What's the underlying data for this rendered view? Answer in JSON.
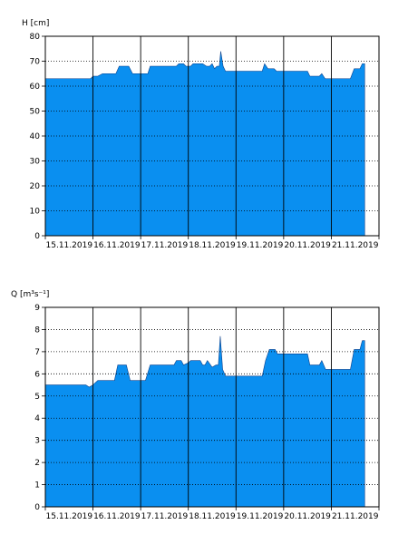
{
  "chart_data": [
    {
      "type": "area",
      "ylabel": "H [cm]",
      "ylim": [
        0,
        80
      ],
      "yticks": [
        0,
        10,
        20,
        30,
        40,
        50,
        60,
        70,
        80
      ],
      "xlim": [
        0,
        7
      ],
      "xticks": [
        "15.11.2019",
        "16.11.2019",
        "17.11.2019",
        "18.11.2019",
        "19.11.2019",
        "20.11.2019",
        "21.11.2019"
      ],
      "grid": "horizontal-dotted, vertical-solid-at-day-boundaries",
      "fill_color": "#0a8ff0",
      "points": [
        [
          0.0,
          63
        ],
        [
          0.9,
          63
        ],
        [
          0.95,
          63
        ],
        [
          1.0,
          64
        ],
        [
          1.1,
          64
        ],
        [
          1.2,
          65
        ],
        [
          1.48,
          65
        ],
        [
          1.55,
          68
        ],
        [
          1.75,
          68
        ],
        [
          1.83,
          65
        ],
        [
          2.15,
          65
        ],
        [
          2.2,
          68
        ],
        [
          2.75,
          68
        ],
        [
          2.8,
          69
        ],
        [
          2.9,
          69
        ],
        [
          2.95,
          68
        ],
        [
          3.05,
          68
        ],
        [
          3.1,
          69
        ],
        [
          3.3,
          69
        ],
        [
          3.38,
          68
        ],
        [
          3.45,
          68
        ],
        [
          3.5,
          69
        ],
        [
          3.55,
          67
        ],
        [
          3.6,
          68
        ],
        [
          3.65,
          68
        ],
        [
          3.68,
          74
        ],
        [
          3.73,
          68
        ],
        [
          3.78,
          66
        ],
        [
          4.55,
          66
        ],
        [
          4.6,
          69
        ],
        [
          4.67,
          67
        ],
        [
          4.8,
          67
        ],
        [
          4.85,
          66
        ],
        [
          5.5,
          66
        ],
        [
          5.55,
          64
        ],
        [
          5.75,
          64
        ],
        [
          5.8,
          65
        ],
        [
          5.87,
          63
        ],
        [
          6.4,
          63
        ],
        [
          6.48,
          67
        ],
        [
          6.6,
          67
        ],
        [
          6.65,
          69
        ],
        [
          6.7,
          69
        ]
      ]
    },
    {
      "type": "area",
      "ylabel": "Q [m³s⁻¹]",
      "ylim": [
        0,
        9
      ],
      "yticks": [
        0,
        1,
        2,
        3,
        4,
        5,
        6,
        7,
        8,
        9
      ],
      "xlim": [
        0,
        7
      ],
      "xticks": [
        "15.11.2019",
        "16.11.2019",
        "17.11.2019",
        "18.11.2019",
        "19.11.2019",
        "20.11.2019",
        "21.11.2019"
      ],
      "grid": "horizontal-dotted, vertical-solid-at-day-boundaries",
      "fill_color": "#0a8ff0",
      "points": [
        [
          0.0,
          5.5
        ],
        [
          0.85,
          5.5
        ],
        [
          0.92,
          5.4
        ],
        [
          1.0,
          5.5
        ],
        [
          1.1,
          5.7
        ],
        [
          1.45,
          5.7
        ],
        [
          1.52,
          6.4
        ],
        [
          1.7,
          6.4
        ],
        [
          1.78,
          5.7
        ],
        [
          2.1,
          5.7
        ],
        [
          2.2,
          6.4
        ],
        [
          2.7,
          6.4
        ],
        [
          2.75,
          6.6
        ],
        [
          2.85,
          6.6
        ],
        [
          2.9,
          6.4
        ],
        [
          3.0,
          6.5
        ],
        [
          3.05,
          6.6
        ],
        [
          3.25,
          6.6
        ],
        [
          3.3,
          6.4
        ],
        [
          3.35,
          6.4
        ],
        [
          3.4,
          6.6
        ],
        [
          3.5,
          6.3
        ],
        [
          3.58,
          6.4
        ],
        [
          3.63,
          6.4
        ],
        [
          3.67,
          7.7
        ],
        [
          3.72,
          6.2
        ],
        [
          3.78,
          5.9
        ],
        [
          4.55,
          5.9
        ],
        [
          4.62,
          6.6
        ],
        [
          4.7,
          7.1
        ],
        [
          4.82,
          7.1
        ],
        [
          4.87,
          6.9
        ],
        [
          5.5,
          6.9
        ],
        [
          5.55,
          6.4
        ],
        [
          5.75,
          6.4
        ],
        [
          5.8,
          6.6
        ],
        [
          5.88,
          6.2
        ],
        [
          6.4,
          6.2
        ],
        [
          6.48,
          7.1
        ],
        [
          6.6,
          7.1
        ],
        [
          6.65,
          7.5
        ],
        [
          6.7,
          7.5
        ]
      ]
    }
  ]
}
